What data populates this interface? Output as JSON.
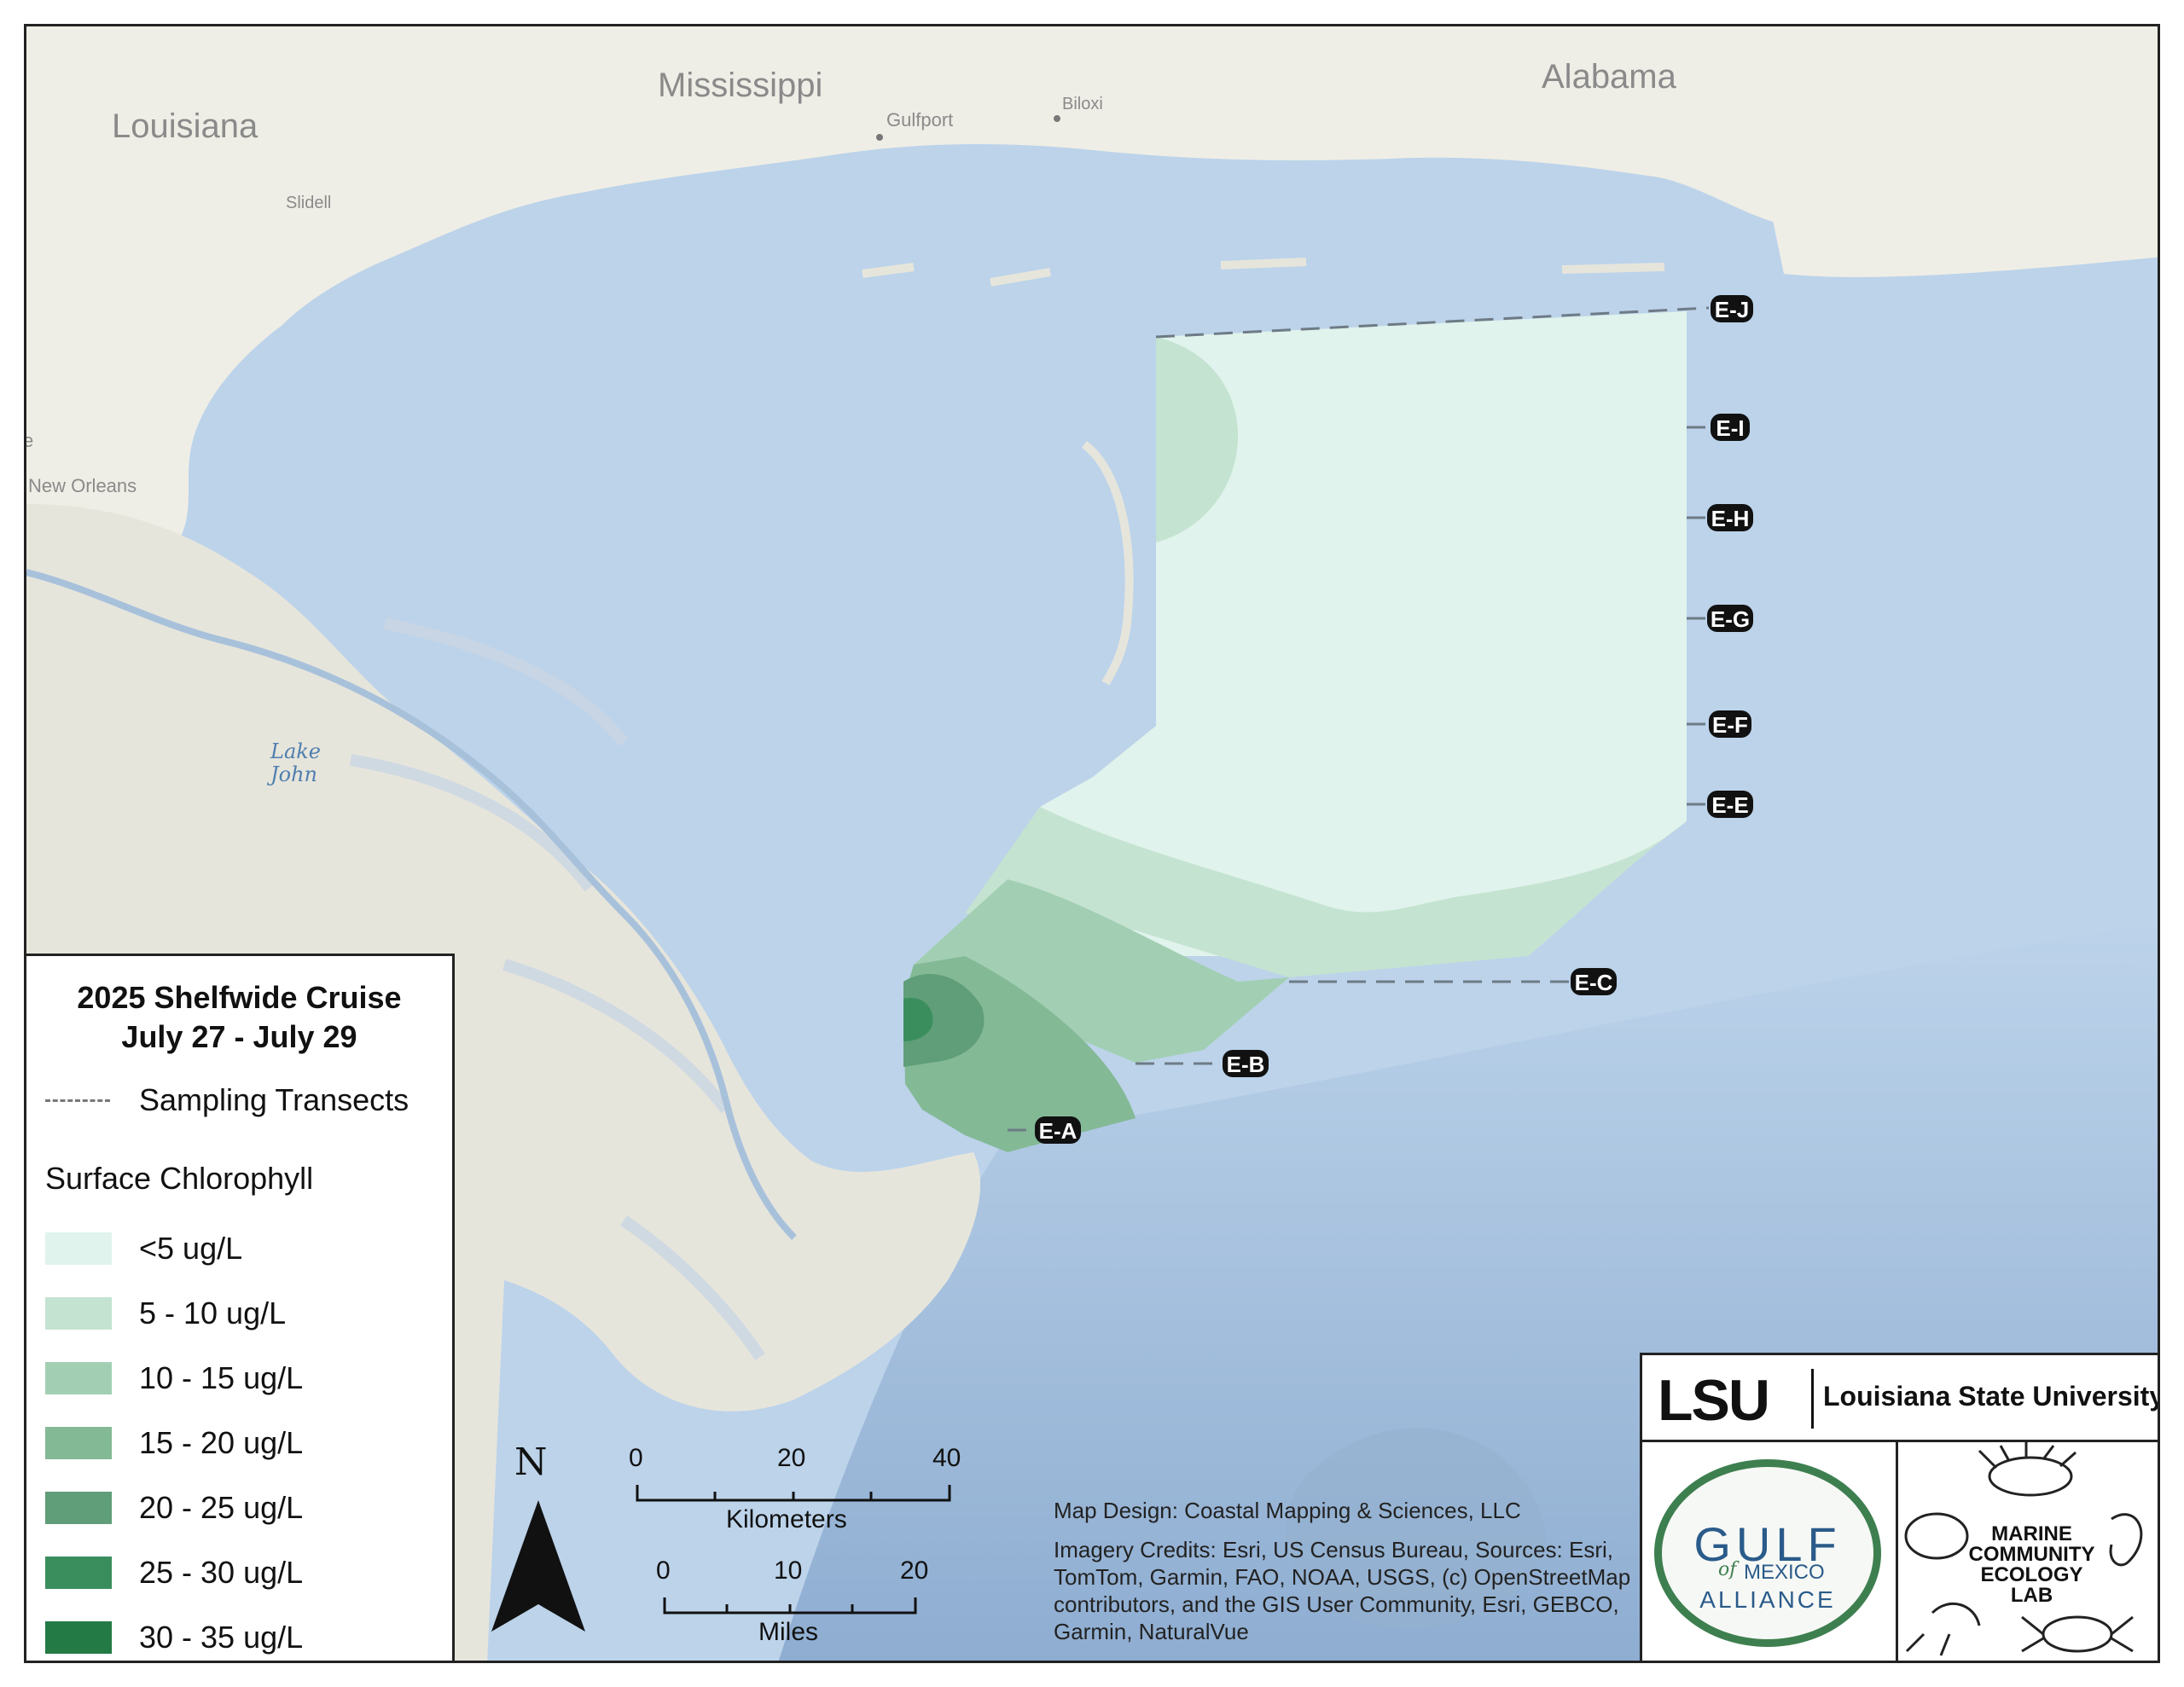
{
  "map": {
    "places": {
      "louisiana": "Louisiana",
      "mississippi": "Mississippi",
      "alabama": "Alabama",
      "gulfport": "Gulfport",
      "biloxi": "Biloxi",
      "slidell": "Slidell",
      "new_orleans": "New Orleans",
      "lake_line1": "Lake",
      "lake_line2": "John",
      "edge_e": "e"
    },
    "transects": [
      "E-J",
      "E-I",
      "E-H",
      "E-G",
      "E-F",
      "E-E",
      "E-C",
      "E-B",
      "E-A"
    ],
    "colors": {
      "water": "#bcd3ea",
      "land": "#efeee6",
      "marsh": "#e6e5dc",
      "deep_water": "#8fb0d4"
    }
  },
  "legend": {
    "title_line1": "2025 Shelfwide Cruise",
    "title_line2": "July 27 - July 29",
    "transects_label": "Sampling Transects",
    "chlorophyll_header": "Surface Chlorophyll",
    "classes": [
      {
        "label": "<5 ug/L",
        "color": "#e0f3ec"
      },
      {
        "label": "5 - 10 ug/L",
        "color": "#c5e3d1"
      },
      {
        "label": "10 - 15 ug/L",
        "color": "#a2cfb3"
      },
      {
        "label": "15 - 20 ug/L",
        "color": "#84b996"
      },
      {
        "label": "20 - 25 ug/L",
        "color": "#5f9e78"
      },
      {
        "label": "25 - 30 ug/L",
        "color": "#3a8e5e"
      },
      {
        "label": "30 - 35 ug/L",
        "color": "#237a45"
      }
    ]
  },
  "north_label": "N",
  "scalebar": {
    "km": {
      "ticks": [
        "0",
        "20",
        "40"
      ],
      "unit": "Kilometers"
    },
    "mi": {
      "ticks": [
        "0",
        "10",
        "20"
      ],
      "unit": "Miles"
    }
  },
  "credits": {
    "design": "Map Design: Coastal Mapping & Sciences, LLC",
    "imagery": "Imagery Credits: Esri, US Census Bureau, Sources: Esri, TomTom, Garmin, FAO, NOAA, USGS, (c) OpenStreetMap contributors, and the GIS User Community, Esri, GEBCO, Garmin, NaturalVue"
  },
  "logos": {
    "lsu_mark": "LSU",
    "lsu_name": "Louisiana State University",
    "gulf_word": "GULF",
    "gulf_of": "of",
    "gulf_mexico": "MEXICO",
    "gulf_alliance": "ALLIANCE",
    "mcel_line1": "MARINE",
    "mcel_line2": "COMMUNITY",
    "mcel_line3": "ECOLOGY",
    "mcel_line4": "LAB"
  }
}
